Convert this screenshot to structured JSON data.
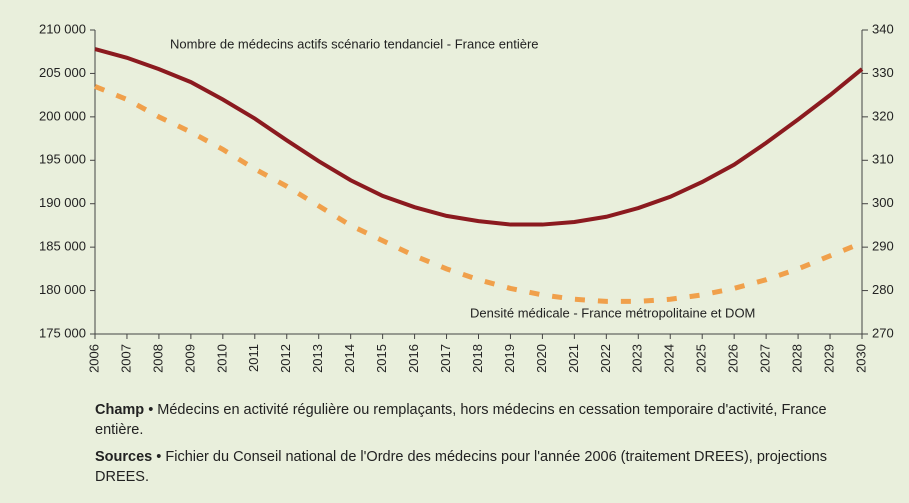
{
  "chart_data": {
    "type": "line",
    "categories": [
      "2006",
      "2007",
      "2008",
      "2009",
      "2010",
      "2011",
      "2012",
      "2013",
      "2014",
      "2015",
      "2016",
      "2017",
      "2018",
      "2019",
      "2020",
      "2021",
      "2022",
      "2023",
      "2024",
      "2025",
      "2026",
      "2027",
      "2028",
      "2029",
      "2030"
    ],
    "series": [
      {
        "name": "Nombre de médecins actifs scénario tendanciel - France entière",
        "color": "#8b1a1f",
        "axis": "y",
        "values": [
          207800,
          206800,
          205500,
          204000,
          202000,
          199800,
          197300,
          194900,
          192700,
          190900,
          189600,
          188600,
          188000,
          187600,
          187600,
          187900,
          188500,
          189500,
          190800,
          192500,
          194500,
          197000,
          199700,
          202500,
          205500
        ]
      },
      {
        "name": "Densité médicale - France métropolitaine et DOM",
        "color": "#f0a04b",
        "axis": "y2",
        "dashed": true,
        "values": [
          327,
          324,
          320,
          316.5,
          312.5,
          308,
          304,
          299.5,
          295,
          291.5,
          288,
          285,
          282.5,
          280.5,
          279,
          278,
          277.5,
          277.5,
          278,
          279,
          280.5,
          282.5,
          285,
          288,
          291
        ]
      }
    ],
    "ylim": [
      175000,
      210000
    ],
    "yticks": [
      {
        "value": 175000,
        "label": "175 000"
      },
      {
        "value": 180000,
        "label": "180 000"
      },
      {
        "value": 185000,
        "label": "185 000"
      },
      {
        "value": 190000,
        "label": "190 000"
      },
      {
        "value": 195000,
        "label": "195 000"
      },
      {
        "value": 200000,
        "label": "200 000"
      },
      {
        "value": 205000,
        "label": "205 000"
      },
      {
        "value": 210000,
        "label": "210 000"
      }
    ],
    "y2lim": [
      270,
      340
    ],
    "y2ticks": [
      270,
      280,
      290,
      300,
      310,
      320,
      330,
      340
    ],
    "notes": [
      {
        "label": "Champ",
        "text": "• Médecins en activité régulière ou remplaçants, hors médecins en cessation temporaire d'activité, France entière."
      },
      {
        "label": "Sources",
        "text": "• Fichier du Conseil national de l'Ordre des médecins pour l'année 2006 (traitement DREES), projections DREES."
      }
    ]
  }
}
